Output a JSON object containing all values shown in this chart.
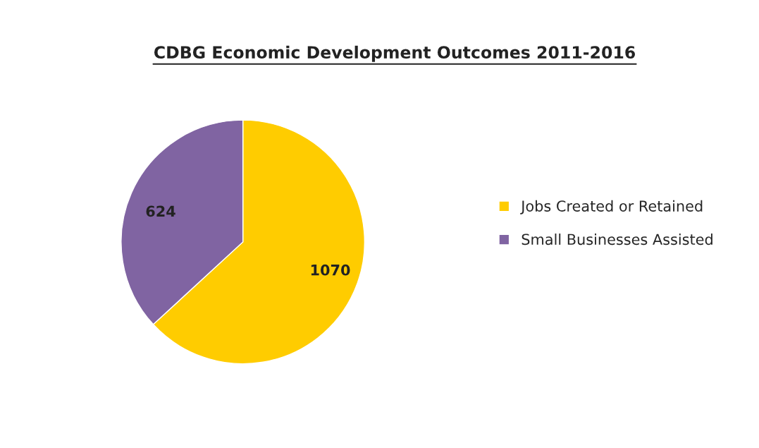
{
  "chart_data": {
    "type": "pie",
    "title": "CDBG Economic Development Outcomes 2011-2016",
    "categories": [
      "Jobs Created or Retained",
      "Small Businesses Assisted"
    ],
    "values": [
      1070,
      624
    ],
    "colors": [
      "#ffcc00",
      "#8064a2"
    ],
    "data_labels": true,
    "legend": "right"
  }
}
